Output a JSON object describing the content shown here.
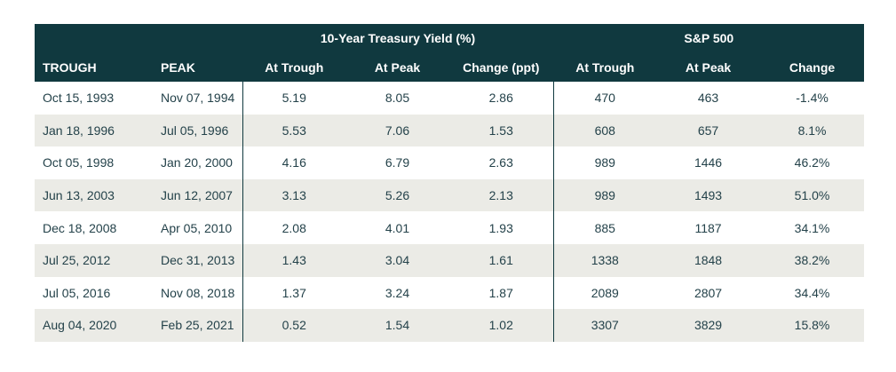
{
  "chart_data": {
    "type": "table",
    "header_groups": [
      {
        "label": "",
        "span": 2
      },
      {
        "label": "10-Year Treasury Yield (%)",
        "span": 3
      },
      {
        "label": "S&P 500",
        "span": 3
      }
    ],
    "columns": [
      "TROUGH",
      "PEAK",
      "At Trough",
      "At Peak",
      "Change (ppt)",
      "At Trough",
      "At Peak",
      "Change"
    ],
    "rows": [
      [
        "Oct 15, 1993",
        "Nov 07, 1994",
        "5.19",
        "8.05",
        "2.86",
        "470",
        "463",
        "-1.4%"
      ],
      [
        "Jan 18, 1996",
        "Jul 05, 1996",
        "5.53",
        "7.06",
        "1.53",
        "608",
        "657",
        "8.1%"
      ],
      [
        "Oct 05, 1998",
        "Jan 20, 2000",
        "4.16",
        "6.79",
        "2.63",
        "989",
        "1446",
        "46.2%"
      ],
      [
        "Jun 13, 2003",
        "Jun 12, 2007",
        "3.13",
        "5.26",
        "2.13",
        "989",
        "1493",
        "51.0%"
      ],
      [
        "Dec 18, 2008",
        "Apr 05, 2010",
        "2.08",
        "4.01",
        "1.93",
        "885",
        "1187",
        "34.1%"
      ],
      [
        "Jul 25, 2012",
        "Dec 31, 2013",
        "1.43",
        "3.04",
        "1.61",
        "1338",
        "1848",
        "38.2%"
      ],
      [
        "Jul 05, 2016",
        "Nov 08, 2018",
        "1.37",
        "3.24",
        "1.87",
        "2089",
        "2807",
        "34.4%"
      ],
      [
        "Aug 04, 2020",
        "Feb 25, 2021",
        "0.52",
        "1.54",
        "1.02",
        "3307",
        "3829",
        "15.8%"
      ]
    ]
  },
  "colors": {
    "header_bg": "#10393f",
    "header_text": "#ffffff",
    "stripe_bg": "#ebebe6",
    "body_text": "#24424a"
  }
}
